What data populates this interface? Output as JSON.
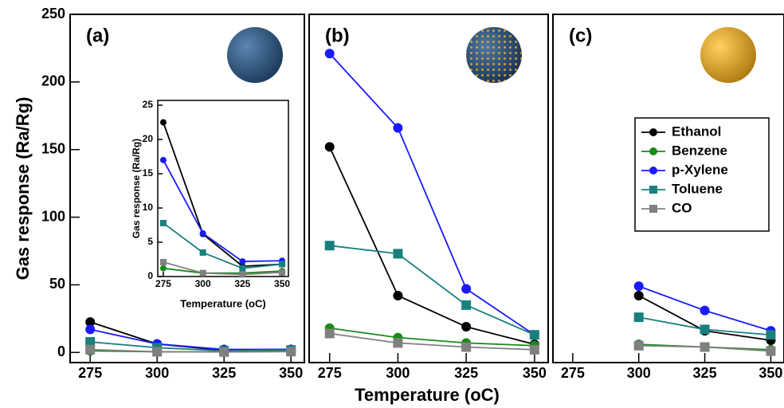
{
  "chart_data": [
    {
      "type": "line",
      "title": "(a)",
      "ylabel": "Gas response (Ra/Rg)",
      "x": [
        275,
        300,
        325,
        350
      ],
      "xlim": [
        267.5,
        355
      ],
      "xticks": [
        275,
        300,
        325,
        350
      ],
      "ylim": [
        -7.5,
        250
      ],
      "yticks": [
        0,
        50,
        100,
        150,
        200,
        250
      ],
      "series": [
        {
          "name": "Ethanol",
          "color": "#000000",
          "marker": "circle",
          "values": [
            22.5,
            6.2,
            1.5,
            1.8
          ]
        },
        {
          "name": "Benzene",
          "color": "#1a8a1a",
          "marker": "circle",
          "values": [
            1.2,
            0.5,
            0.5,
            0.8
          ]
        },
        {
          "name": "p-Xylene",
          "color": "#1a1aff",
          "marker": "circle",
          "values": [
            17,
            6.3,
            2.2,
            2.3
          ]
        },
        {
          "name": "Toluene",
          "color": "#1a7f7f",
          "marker": "square",
          "values": [
            7.8,
            3.5,
            1.2,
            1.8
          ]
        },
        {
          "name": "CO",
          "color": "#808080",
          "marker": "square",
          "values": [
            2.1,
            0.5,
            0.3,
            0.6
          ]
        }
      ]
    },
    {
      "type": "line",
      "title": "(b)",
      "xlabel": "Temperature (oC)",
      "x": [
        275,
        300,
        325,
        350
      ],
      "xlim": [
        267.5,
        355
      ],
      "xticks": [
        275,
        300,
        325,
        350
      ],
      "ylim": [
        -7.5,
        250
      ],
      "series": [
        {
          "name": "Ethanol",
          "color": "#000000",
          "marker": "circle",
          "values": [
            152,
            42,
            19,
            6
          ]
        },
        {
          "name": "Benzene",
          "color": "#1a8a1a",
          "marker": "circle",
          "values": [
            18,
            11,
            7,
            5
          ]
        },
        {
          "name": "p-Xylene",
          "color": "#1a1aff",
          "marker": "circle",
          "values": [
            221,
            166,
            47,
            13
          ]
        },
        {
          "name": "Toluene",
          "color": "#1a7f7f",
          "marker": "square",
          "values": [
            79,
            73,
            35,
            13
          ]
        },
        {
          "name": "CO",
          "color": "#808080",
          "marker": "square",
          "values": [
            14,
            7,
            4,
            2
          ]
        }
      ]
    },
    {
      "type": "line",
      "title": "(c)",
      "legend": "right",
      "x": [
        275,
        300,
        325,
        350
      ],
      "xlim": [
        267.5,
        355
      ],
      "xticks": [
        275,
        300,
        325,
        350
      ],
      "ylim": [
        -7.5,
        250
      ],
      "series": [
        {
          "name": "Ethanol",
          "color": "#000000",
          "marker": "circle",
          "values": [
            null,
            42,
            16,
            9
          ]
        },
        {
          "name": "Benzene",
          "color": "#1a8a1a",
          "marker": "circle",
          "values": [
            null,
            6,
            4,
            2
          ]
        },
        {
          "name": "p-Xylene",
          "color": "#1a1aff",
          "marker": "circle",
          "values": [
            null,
            49,
            31,
            16
          ]
        },
        {
          "name": "Toluene",
          "color": "#1a7f7f",
          "marker": "square",
          "values": [
            null,
            26,
            17,
            13
          ]
        },
        {
          "name": "CO",
          "color": "#808080",
          "marker": "square",
          "values": [
            null,
            5,
            4,
            1
          ]
        }
      ]
    },
    {
      "type": "line",
      "xlabel": "Temperature (oC)",
      "ylabel": "Gas response (Ra/Rg)",
      "x": [
        275,
        300,
        325,
        350
      ],
      "xlim": [
        271.5,
        354
      ],
      "xticks": [
        275,
        300,
        325,
        350
      ],
      "ylim": [
        0,
        25.7
      ],
      "yticks": [
        0,
        5,
        10,
        15,
        20,
        25
      ],
      "series": [
        {
          "name": "Ethanol",
          "color": "#000000",
          "marker": "circle",
          "values": [
            22.5,
            6.2,
            1.5,
            1.8
          ]
        },
        {
          "name": "Benzene",
          "color": "#1a8a1a",
          "marker": "circle",
          "values": [
            1.2,
            0.5,
            0.5,
            0.8
          ]
        },
        {
          "name": "p-Xylene",
          "color": "#1a1aff",
          "marker": "circle",
          "values": [
            17,
            6.3,
            2.2,
            2.3
          ]
        },
        {
          "name": "Toluene",
          "color": "#1a7f7f",
          "marker": "square",
          "values": [
            7.8,
            3.5,
            1.2,
            1.8
          ]
        },
        {
          "name": "CO",
          "color": "#808080",
          "marker": "square",
          "values": [
            2.1,
            0.5,
            0.3,
            0.6
          ]
        }
      ]
    }
  ]
}
